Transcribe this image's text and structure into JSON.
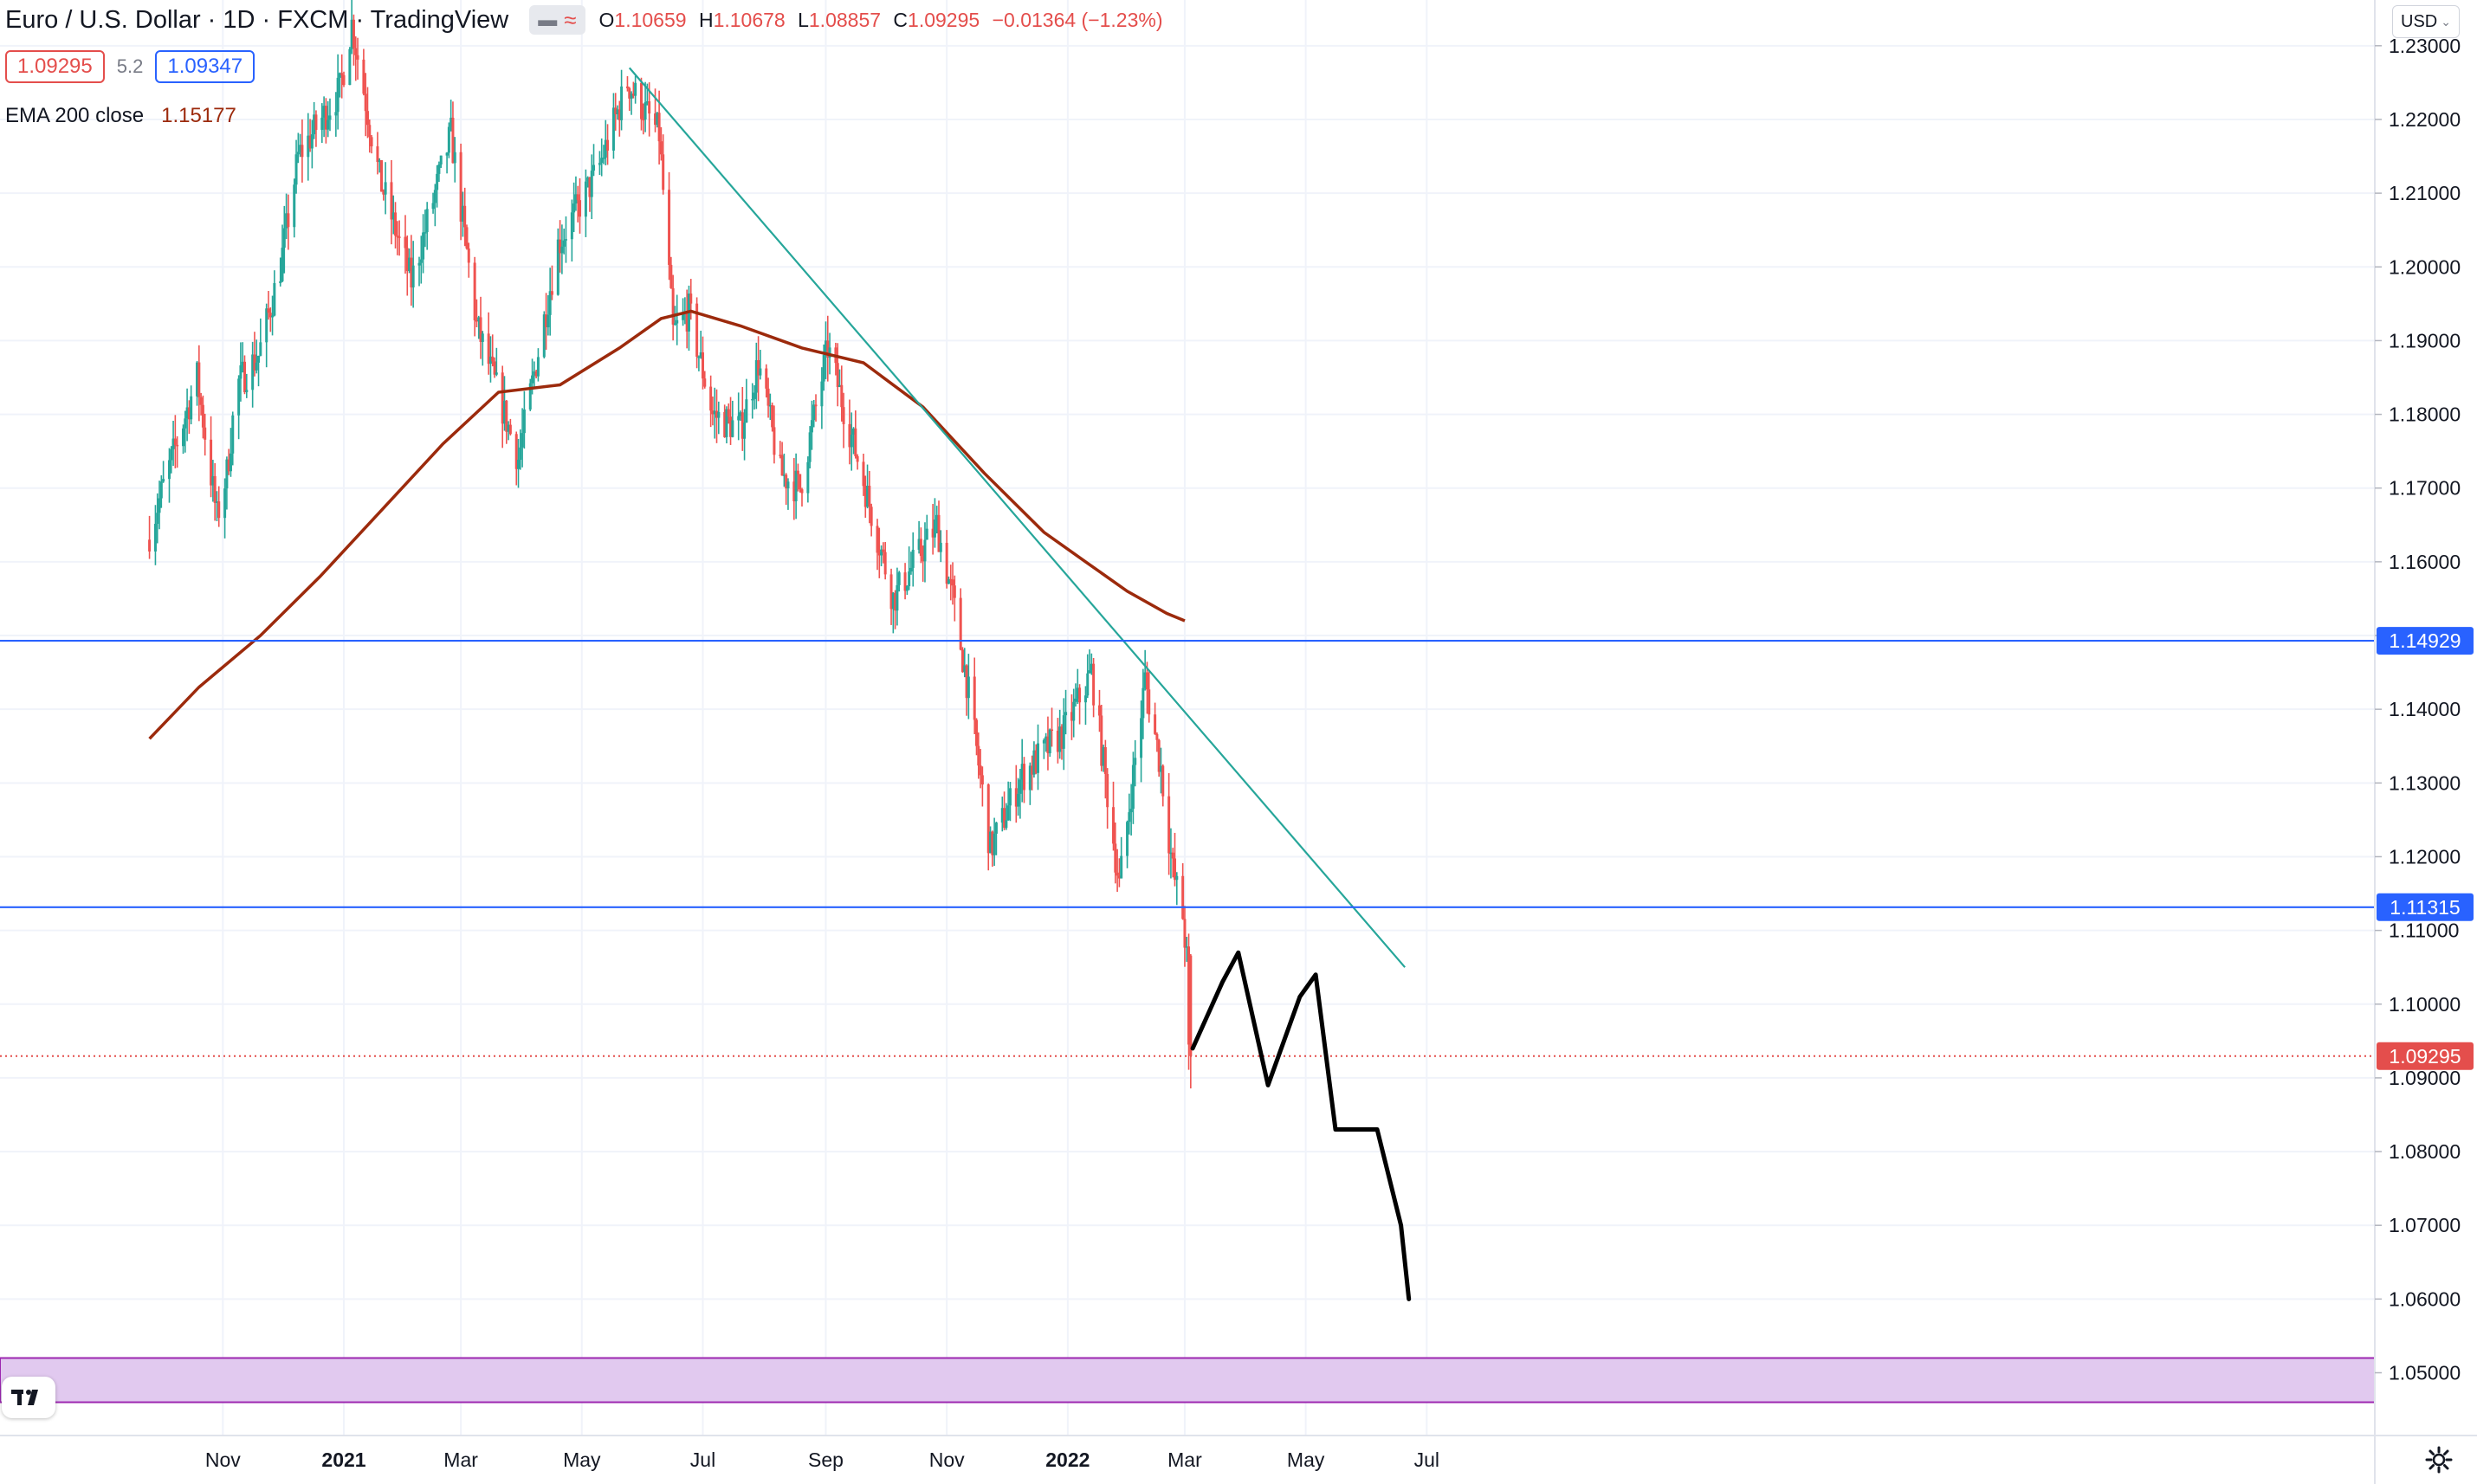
{
  "header": {
    "title": "Euro / U.S. Dollar · 1D · FXCM · TradingView",
    "ohlc": {
      "o_label": "O",
      "o": "1.10659",
      "h_label": "H",
      "h": "1.10678",
      "l_label": "L",
      "l": "1.08857",
      "c_label": "C",
      "c": "1.09295",
      "change": "−0.01364 (−1.23%)"
    },
    "bid": "1.09295",
    "spread": "5.2",
    "ask": "1.09347",
    "indicator_name": "EMA 200 close",
    "indicator_value": "1.15177",
    "currency": "USD"
  },
  "colors": {
    "up": "#26a69a",
    "down": "#ef5350",
    "ema": "#9c2a0c",
    "trendline": "#26a69a",
    "level": "#2962ff",
    "drawing": "#000000",
    "price_line": "#e44e4c",
    "band": "#e1c9ef",
    "band_border": "#9c27b0"
  },
  "icons": {
    "logo": "tradingview-logo-icon",
    "settings": "gear-icon",
    "chevron": "chevron-down-icon"
  },
  "chart_data": {
    "type": "candlestick",
    "symbol": "EURUSD",
    "timeframe": "1D",
    "y_range": [
      1.046,
      1.2345
    ],
    "price_ticks": [
      "1.23000",
      "1.22000",
      "1.21000",
      "1.20000",
      "1.19000",
      "1.18000",
      "1.17000",
      "1.16000",
      "1.15000",
      "1.14000",
      "1.13000",
      "1.12000",
      "1.11000",
      "1.10000",
      "1.09000",
      "1.08000",
      "1.07000",
      "1.06000",
      "1.05000"
    ],
    "time_labels": [
      {
        "label": "Nov",
        "date": "2020-11-01"
      },
      {
        "label": "2021",
        "date": "2021-01-01"
      },
      {
        "label": "Mar",
        "date": "2021-03-01"
      },
      {
        "label": "May",
        "date": "2021-05-01"
      },
      {
        "label": "Jul",
        "date": "2021-07-01"
      },
      {
        "label": "Sep",
        "date": "2021-09-01"
      },
      {
        "label": "Nov",
        "date": "2021-11-01"
      },
      {
        "label": "2022",
        "date": "2022-01-01"
      },
      {
        "label": "Mar",
        "date": "2022-03-01"
      },
      {
        "label": "May",
        "date": "2022-05-01"
      },
      {
        "label": "Jul",
        "date": "2022-07-01"
      }
    ],
    "price_anchors": [
      [
        "2020-09-25",
        1.163
      ],
      [
        "2020-10-05",
        1.172
      ],
      [
        "2020-10-20",
        1.185
      ],
      [
        "2020-10-30",
        1.166
      ],
      [
        "2020-11-04",
        1.172
      ],
      [
        "2020-11-09",
        1.184
      ],
      [
        "2020-11-20",
        1.188
      ],
      [
        "2020-12-01",
        1.2
      ],
      [
        "2020-12-10",
        1.215
      ],
      [
        "2020-12-31",
        1.224
      ],
      [
        "2021-01-06",
        1.233
      ],
      [
        "2021-01-20",
        1.212
      ],
      [
        "2021-02-05",
        1.198
      ],
      [
        "2021-02-25",
        1.218
      ],
      [
        "2021-03-10",
        1.192
      ],
      [
        "2021-03-31",
        1.174
      ],
      [
        "2021-04-20",
        1.203
      ],
      [
        "2021-05-10",
        1.213
      ],
      [
        "2021-05-25",
        1.225
      ],
      [
        "2021-06-10",
        1.218
      ],
      [
        "2021-06-17",
        1.191
      ],
      [
        "2021-06-25",
        1.194
      ],
      [
        "2021-07-07",
        1.18
      ],
      [
        "2021-07-21",
        1.178
      ],
      [
        "2021-07-30",
        1.187
      ],
      [
        "2021-08-10",
        1.172
      ],
      [
        "2021-08-20",
        1.17
      ],
      [
        "2021-09-03",
        1.189
      ],
      [
        "2021-09-20",
        1.172
      ],
      [
        "2021-10-06",
        1.155
      ],
      [
        "2021-10-28",
        1.165
      ],
      [
        "2021-11-05",
        1.155
      ],
      [
        "2021-11-12",
        1.144
      ],
      [
        "2021-11-24",
        1.121
      ],
      [
        "2021-12-10",
        1.131
      ],
      [
        "2021-12-31",
        1.137
      ],
      [
        "2022-01-14",
        1.145
      ],
      [
        "2022-01-28",
        1.116
      ],
      [
        "2022-02-10",
        1.144
      ],
      [
        "2022-02-18",
        1.132
      ],
      [
        "2022-02-24",
        1.118
      ],
      [
        "2022-03-01",
        1.112
      ],
      [
        "2022-03-03",
        1.106
      ],
      [
        "2022-03-04",
        1.093
      ]
    ],
    "last_candle": {
      "date": "2022-03-04",
      "open": 1.10659,
      "high": 1.10678,
      "low": 1.08857,
      "close": 1.09295
    },
    "ema200": [
      [
        "2020-09-25",
        1.136
      ],
      [
        "2020-10-20",
        1.143
      ],
      [
        "2020-11-20",
        1.15
      ],
      [
        "2020-12-20",
        1.158
      ],
      [
        "2021-01-20",
        1.167
      ],
      [
        "2021-02-20",
        1.176
      ],
      [
        "2021-03-20",
        1.183
      ],
      [
        "2021-04-20",
        1.184
      ],
      [
        "2021-05-20",
        1.189
      ],
      [
        "2021-06-10",
        1.193
      ],
      [
        "2021-06-25",
        1.194
      ],
      [
        "2021-07-20",
        1.192
      ],
      [
        "2021-08-20",
        1.189
      ],
      [
        "2021-09-20",
        1.187
      ],
      [
        "2021-10-20",
        1.181
      ],
      [
        "2021-11-20",
        1.172
      ],
      [
        "2021-12-20",
        1.164
      ],
      [
        "2022-01-10",
        1.16
      ],
      [
        "2022-01-31",
        1.156
      ],
      [
        "2022-02-20",
        1.153
      ],
      [
        "2022-03-01",
        1.152
      ]
    ],
    "trendline": {
      "start": [
        "2021-05-25",
        1.227
      ],
      "end": [
        "2022-06-20",
        1.105
      ]
    },
    "horizontal_levels": [
      "1.14929",
      "1.11315"
    ],
    "price_line_label": "1.09295",
    "projection_path": [
      [
        "2022-03-05",
        1.094
      ],
      [
        "2022-03-20",
        1.103
      ],
      [
        "2022-03-28",
        1.107
      ],
      [
        "2022-04-12",
        1.089
      ],
      [
        "2022-04-28",
        1.101
      ],
      [
        "2022-05-06",
        1.104
      ],
      [
        "2022-05-16",
        1.083
      ],
      [
        "2022-06-06",
        1.083
      ],
      [
        "2022-06-18",
        1.07
      ],
      [
        "2022-06-22",
        1.06
      ]
    ],
    "band": [
      1.046,
      1.052
    ]
  }
}
